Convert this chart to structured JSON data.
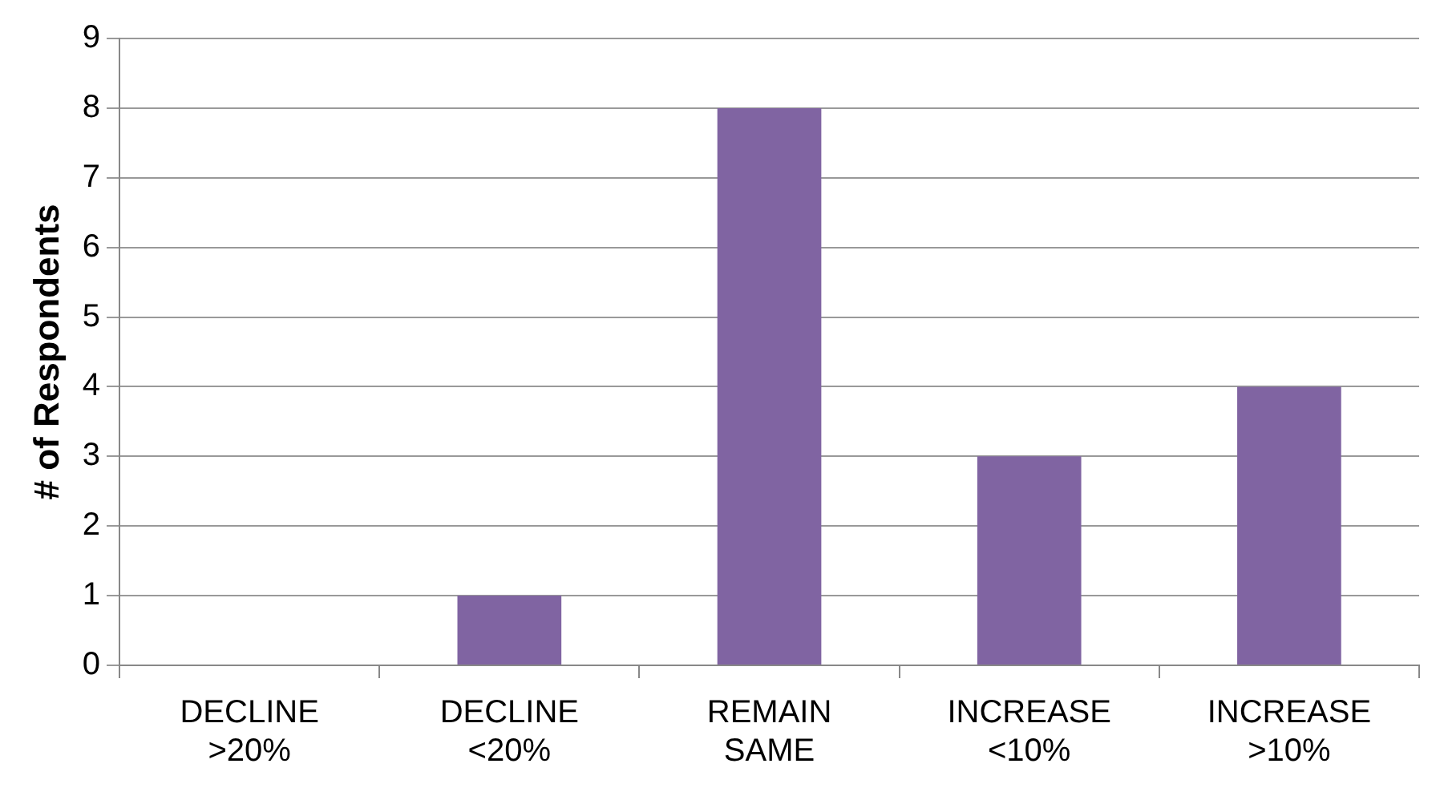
{
  "chart_data": {
    "type": "bar",
    "ylabel": "# of Respondents",
    "categories": [
      "DECLINE\n>20%",
      "DECLINE\n<20%",
      "REMAIN\nSAME",
      "INCREASE\n<10%",
      "INCREASE\n>10%"
    ],
    "values": [
      0,
      1,
      8,
      3,
      4
    ],
    "color": "#8064a2",
    "ylim": [
      0,
      9
    ],
    "yticks": [
      0,
      1,
      2,
      3,
      4,
      5,
      6,
      7,
      8,
      9
    ],
    "grid": "y",
    "legend": false
  }
}
